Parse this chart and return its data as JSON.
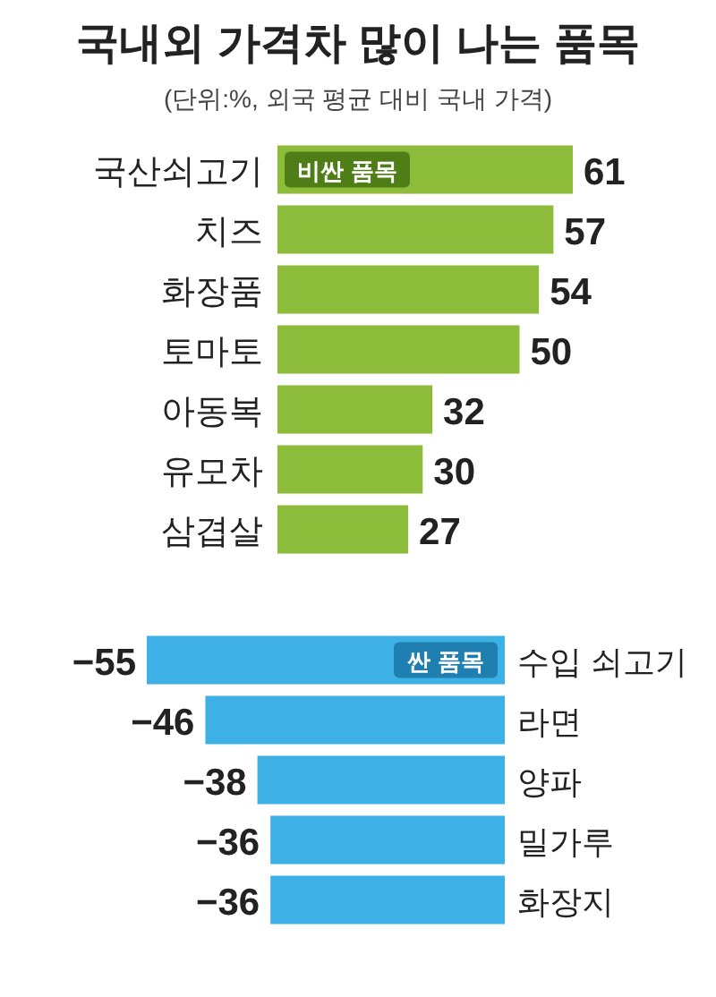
{
  "chart_data": [
    {
      "type": "bar",
      "orientation": "horizontal",
      "title": "국내외 가격차 많이 나는 품목",
      "subtitle": "(단위:%, 외국 평균 대비 국내 가격)",
      "categories": [
        "국산쇠고기",
        "치즈",
        "화장품",
        "토마토",
        "아동복",
        "유모차",
        "삼겹살"
      ],
      "values": [
        61,
        57,
        54,
        50,
        32,
        30,
        27
      ],
      "color": "#8dbb3a",
      "data_labels": true,
      "annotations": [
        "비싼 품목"
      ]
    },
    {
      "type": "bar",
      "orientation": "horizontal",
      "categories": [
        "수입 쇠고기",
        "라면",
        "양파",
        "밀가루",
        "화장지"
      ],
      "values": [
        -55,
        -46,
        -38,
        -36,
        -36
      ],
      "color": "#3db0e5",
      "data_labels": true,
      "annotations": [
        "싼 품목"
      ]
    }
  ]
}
